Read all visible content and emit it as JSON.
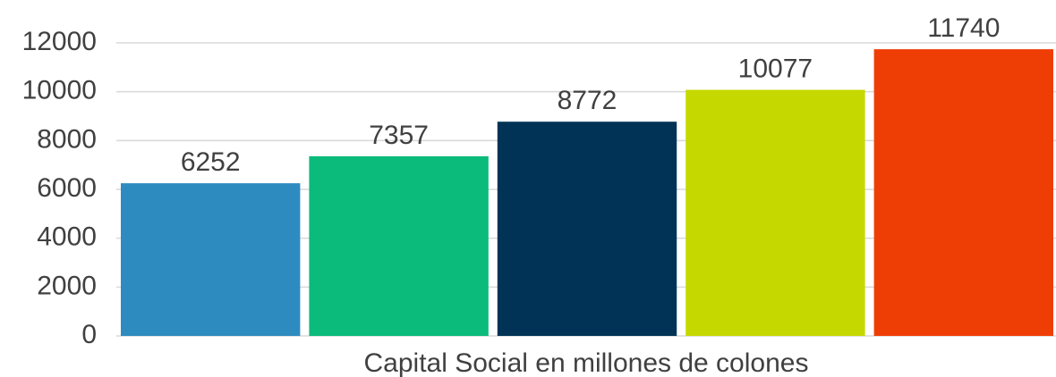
{
  "chart_data": {
    "type": "bar",
    "x_label": "Capital Social en millones de colones",
    "categories": [
      null,
      null,
      null,
      null,
      null
    ],
    "values": [
      6252,
      7357,
      8772,
      10077,
      11740
    ],
    "colors": [
      "#2e8bbf",
      "#0bbb7b",
      "#003355",
      "#c5d900",
      "#ef3e05"
    ],
    "ylim": [
      0,
      12000
    ],
    "yticks": [
      0,
      2000,
      4000,
      6000,
      8000,
      10000,
      12000
    ],
    "grid": true
  }
}
